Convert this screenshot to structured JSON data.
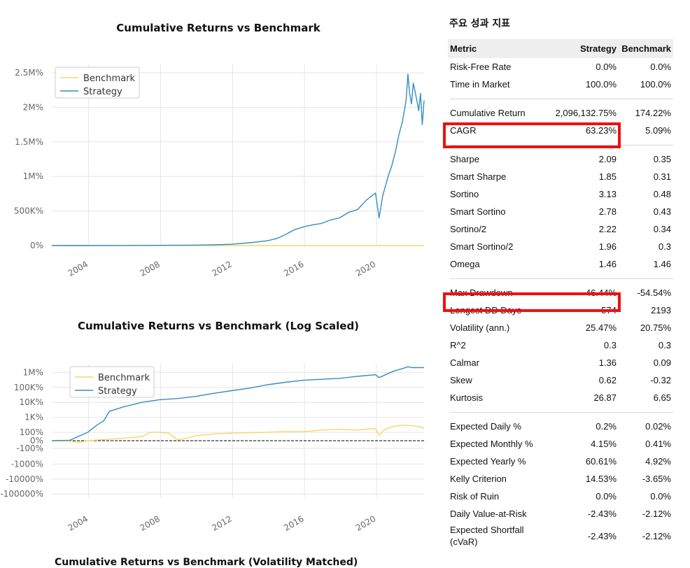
{
  "charts": [
    {
      "title": "Cumulative Returns vs Benchmark",
      "legend": [
        "Benchmark",
        "Strategy"
      ],
      "yticks": [
        "2.5M%",
        "2M%",
        "1.5M%",
        "1M%",
        "500K%",
        "0%"
      ],
      "xticks": [
        "2004",
        "2008",
        "2012",
        "2016",
        "2020"
      ]
    },
    {
      "title": "Cumulative Returns vs Benchmark (Log Scaled)",
      "legend": [
        "Benchmark",
        "Strategy"
      ],
      "yticks": [
        "1M%",
        "100K%",
        "10K%",
        "1K%",
        "100%",
        "0%",
        "-100%",
        "-1000%",
        "-10000%",
        "-100000%"
      ],
      "xticks": [
        "2004",
        "2008",
        "2012",
        "2016",
        "2020"
      ]
    }
  ],
  "chart_data": [
    {
      "type": "line",
      "title": "Cumulative Returns vs Benchmark",
      "xlabel": "",
      "ylabel": "",
      "x_range": [
        2002.0,
        2022.7
      ],
      "ylim": [
        0,
        2500000
      ],
      "legend_position": "top-left",
      "series": [
        {
          "name": "Benchmark",
          "color": "#f5d769",
          "x": [
            2002.0,
            2006,
            2010,
            2014,
            2018,
            2022.7
          ],
          "y": [
            0,
            80,
            100,
            130,
            150,
            174
          ]
        },
        {
          "name": "Strategy",
          "color": "#348dc1",
          "x": [
            2002.0,
            2004,
            2006,
            2008,
            2009,
            2010,
            2011,
            2012,
            2013,
            2014,
            2014.5,
            2015,
            2015.5,
            2016,
            2016.5,
            2017,
            2017.5,
            2018,
            2018.5,
            2019,
            2019.5,
            2020.0,
            2020.2,
            2020.4,
            2020.7,
            2020.9,
            2021.1,
            2021.3,
            2021.5,
            2021.7,
            2021.8,
            2021.9,
            2022.0,
            2022.1,
            2022.3,
            2022.4,
            2022.5,
            2022.6,
            2022.7
          ],
          "y": [
            0,
            500,
            1500,
            3000,
            4000,
            6000,
            10000,
            18000,
            40000,
            70000,
            100000,
            160000,
            230000,
            270000,
            300000,
            320000,
            370000,
            400000,
            480000,
            520000,
            660000,
            760000,
            400000,
            720000,
            1000000,
            1150000,
            1350000,
            1600000,
            1800000,
            2100000,
            2480000,
            2200000,
            2050000,
            2350000,
            2100000,
            1950000,
            2200000,
            1750000,
            2100000
          ]
        }
      ]
    },
    {
      "type": "line",
      "title": "Cumulative Returns vs Benchmark (Log Scaled)",
      "xlabel": "",
      "ylabel": "",
      "x_range": [
        2002.0,
        2022.7
      ],
      "yscale": "symlog",
      "ylim": [
        -100000,
        2000000
      ],
      "legend_position": "top-left",
      "series": [
        {
          "name": "Benchmark",
          "color": "#f5d769",
          "x": [
            2002.0,
            2003,
            2003.5,
            2004,
            2005,
            2006,
            2007,
            2007.5,
            2008,
            2008.5,
            2009,
            2009.5,
            2010,
            2011,
            2012,
            2013,
            2014,
            2015,
            2016,
            2017,
            2018,
            2019,
            2020,
            2020.2,
            2020.5,
            2021,
            2021.5,
            2022,
            2022.5,
            2022.7
          ],
          "y": [
            0,
            -5,
            -20,
            0,
            15,
            30,
            50,
            100,
            100,
            90,
            10,
            30,
            60,
            80,
            90,
            95,
            100,
            110,
            110,
            140,
            160,
            140,
            180,
            60,
            150,
            250,
            300,
            280,
            230,
            174
          ]
        },
        {
          "name": "Strategy",
          "color": "#348dc1",
          "x": [
            2002.0,
            2003,
            2004,
            2004.5,
            2004.9,
            2005.2,
            2006,
            2007,
            2008,
            2009,
            2010,
            2011,
            2012,
            2013,
            2014,
            2015,
            2016,
            2017,
            2018,
            2019,
            2020,
            2020.2,
            2021,
            2021.5,
            2021.8,
            2022,
            2022.7
          ],
          "y": [
            0,
            5,
            100,
            300,
            600,
            2500,
            5000,
            10000,
            15000,
            18000,
            25000,
            40000,
            60000,
            90000,
            150000,
            220000,
            300000,
            350000,
            400000,
            550000,
            700000,
            450000,
            1200000,
            1800000,
            2400000,
            2100000,
            2096000
          ]
        }
      ]
    }
  ],
  "metrics": {
    "title": "주요 성과 지표",
    "header": [
      "Metric",
      "Strategy",
      "Benchmark"
    ],
    "groups": [
      [
        [
          "Risk-Free Rate",
          "0.0%",
          "0.0%"
        ],
        [
          "Time in Market",
          "100.0%",
          "100.0%"
        ]
      ],
      [
        [
          "Cumulative Return",
          "2,096,132.75%",
          "174.22%"
        ],
        [
          "CAGR",
          "63.23%",
          "5.09%"
        ]
      ],
      [
        [
          "Sharpe",
          "2.09",
          "0.35"
        ],
        [
          "Smart Sharpe",
          "1.85",
          "0.31"
        ],
        [
          "Sortino",
          "3.13",
          "0.48"
        ],
        [
          "Smart Sortino",
          "2.78",
          "0.43"
        ],
        [
          "Sortino/2",
          "2.22",
          "0.34"
        ],
        [
          "Smart Sortino/2",
          "1.96",
          "0.3"
        ],
        [
          "Omega",
          "1.46",
          "1.46"
        ]
      ],
      [
        [
          "Max Drawdown",
          "-46.44%",
          "-54.54%"
        ],
        [
          "Longest DD Days",
          "574",
          "2193"
        ],
        [
          "Volatility (ann.)",
          "25.47%",
          "20.75%"
        ],
        [
          "R^2",
          "0.3",
          "0.3"
        ],
        [
          "Calmar",
          "1.36",
          "0.09"
        ],
        [
          "Skew",
          "0.62",
          "-0.32"
        ],
        [
          "Kurtosis",
          "26.87",
          "6.65"
        ]
      ],
      [
        [
          "Expected Daily %",
          "0.2%",
          "0.02%"
        ],
        [
          "Expected Monthly %",
          "4.15%",
          "0.41%"
        ],
        [
          "Expected Yearly %",
          "60.61%",
          "4.92%"
        ],
        [
          "Kelly Criterion",
          "14.53%",
          "-3.65%"
        ],
        [
          "Risk of Ruin",
          "0.0%",
          "0.0%"
        ],
        [
          "Daily Value-at-Risk",
          "-2.43%",
          "-2.12%"
        ],
        [
          "Expected Shortfall (cVaR)",
          "-2.43%",
          "-2.12%"
        ]
      ]
    ],
    "highlighted_metrics": [
      "CAGR",
      "Max Drawdown"
    ],
    "highlight_color": "#ee1111"
  },
  "next_chart_title": "Cumulative Returns vs Benchmark (Volatility Matched)"
}
